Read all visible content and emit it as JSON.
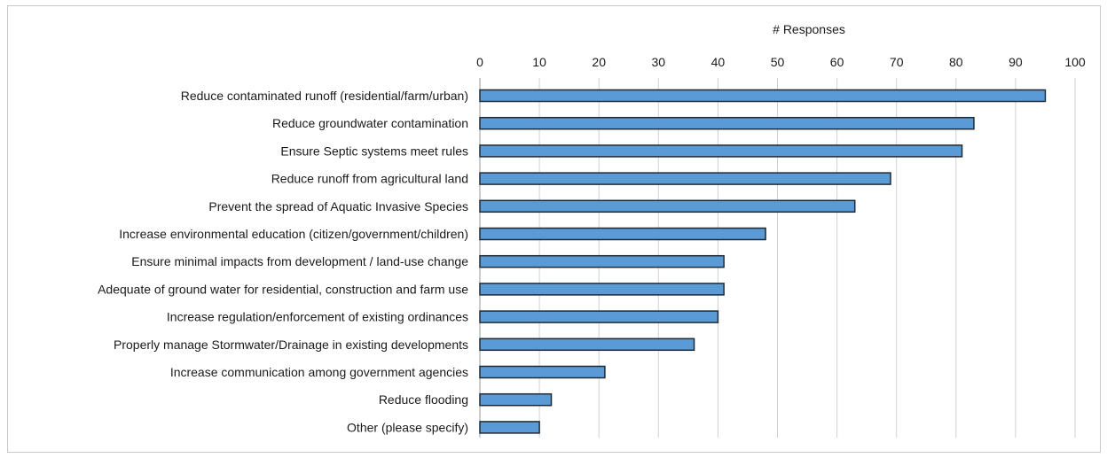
{
  "chart_data": {
    "type": "bar",
    "orientation": "horizontal",
    "title": "",
    "xlabel": "# Responses",
    "ylabel": "",
    "xlim": [
      0,
      100
    ],
    "x_ticks": [
      "0",
      "10",
      "20",
      "30",
      "40",
      "50",
      "60",
      "70",
      "80",
      "90",
      "100"
    ],
    "x_axis_position": "top",
    "grid": true,
    "legend": "none",
    "bar_color": "#5b9bd5",
    "bar_edge_color": "#1f2a36",
    "categories": [
      "Reduce contaminated runoff (residential/farm/urban)",
      "Reduce groundwater contamination",
      "Ensure Septic systems meet rules",
      "Reduce runoff from agricultural land",
      "Prevent the spread of Aquatic Invasive Species",
      "Increase environmental education (citizen/government/children)",
      "Ensure minimal impacts from development / land-use change",
      "Adequate of ground water for residential, construction and farm use",
      "Increase regulation/enforcement of existing ordinances",
      "Properly manage Stormwater/Drainage in existing developments",
      "Increase communication among government agencies",
      "Reduce flooding",
      "Other (please specify)"
    ],
    "values": [
      95,
      83,
      81,
      69,
      63,
      48,
      41,
      41,
      40,
      36,
      21,
      12,
      10
    ]
  }
}
